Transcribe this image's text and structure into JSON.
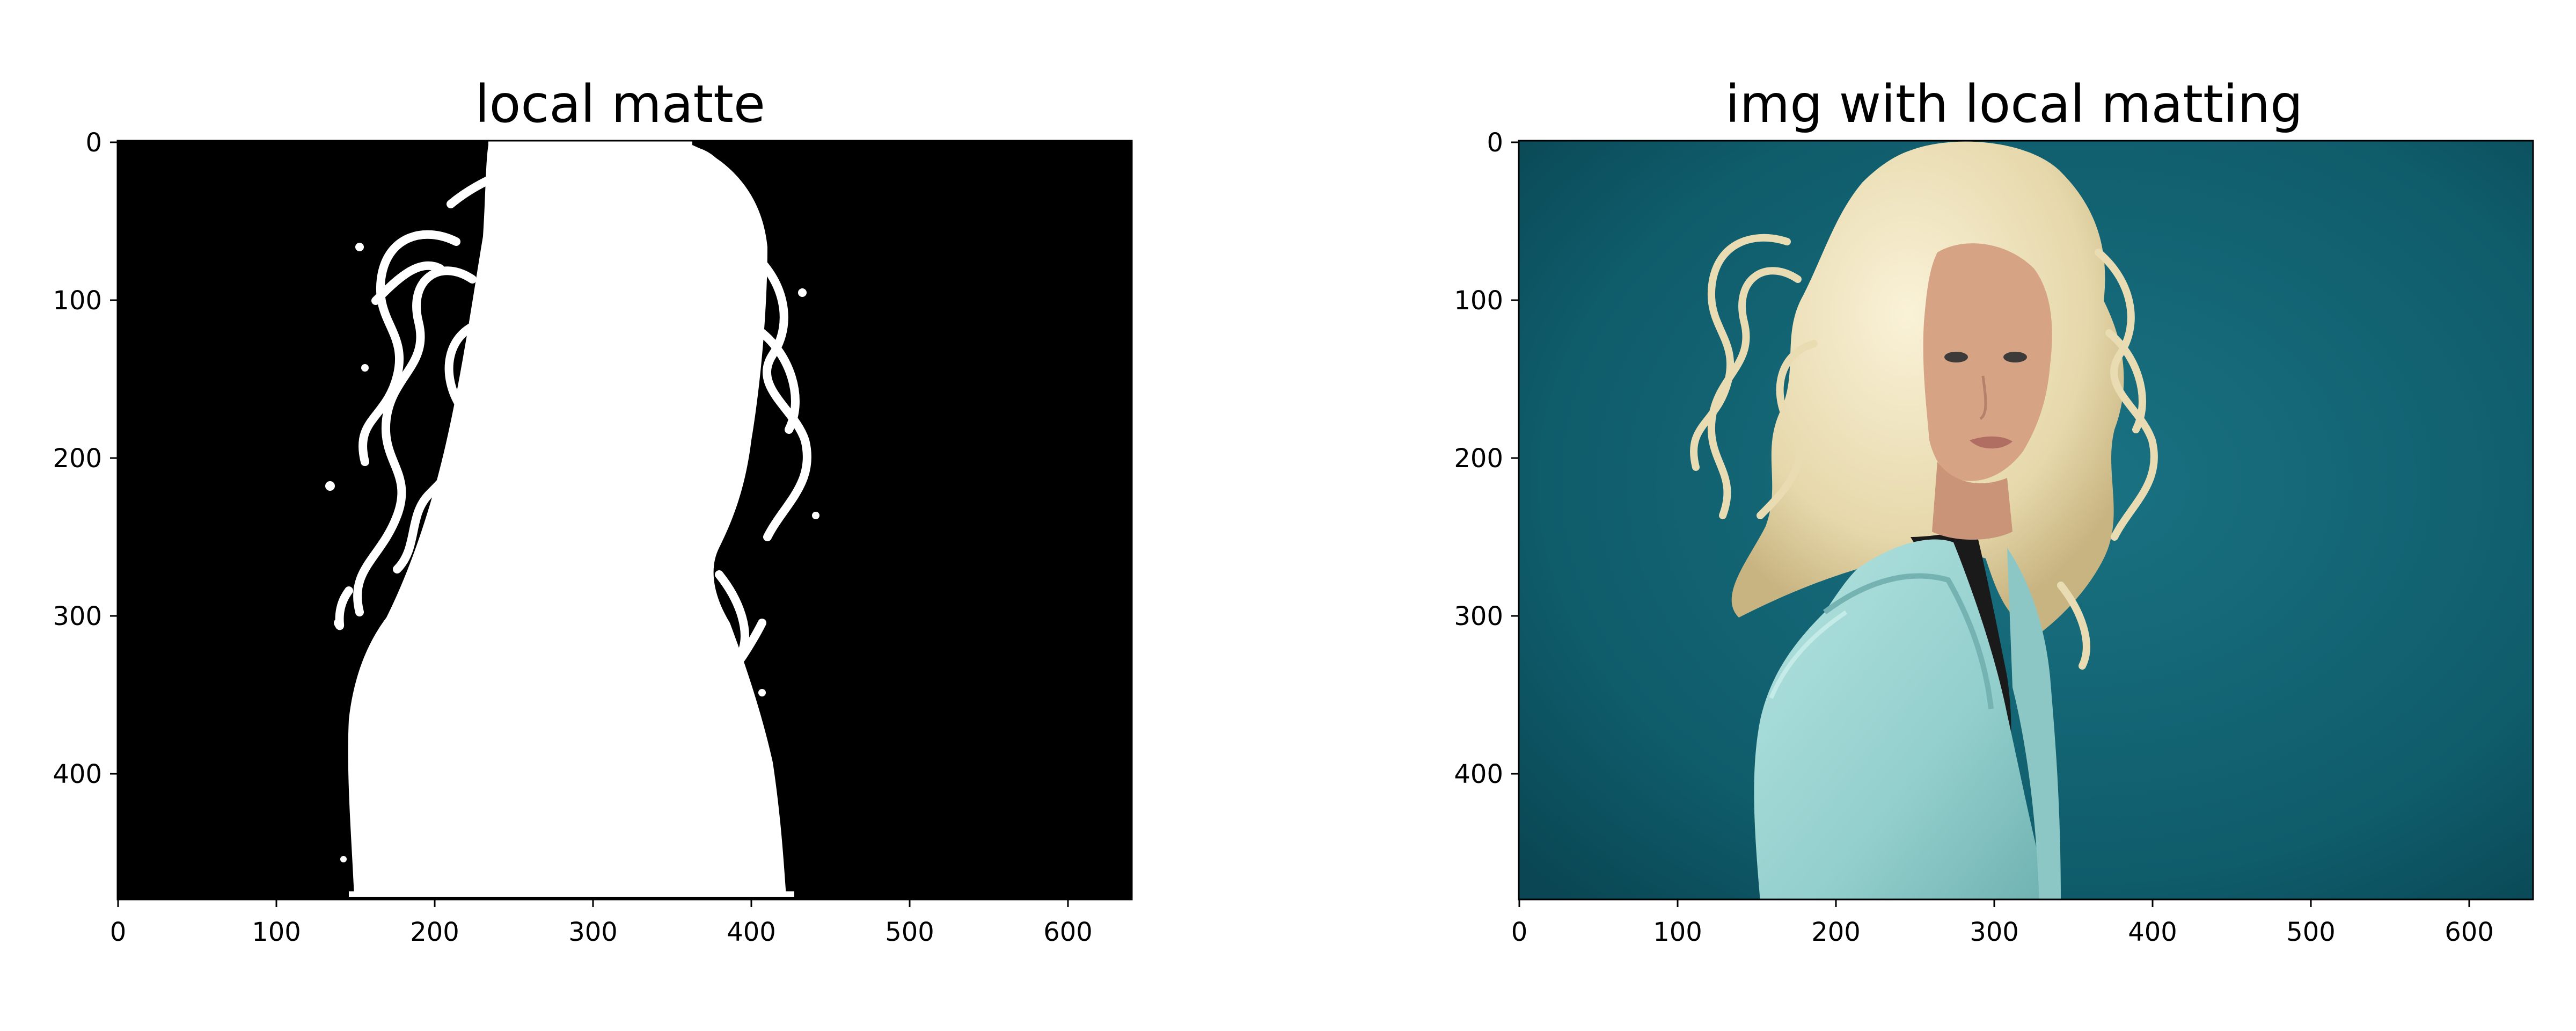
{
  "figures": [
    {
      "title": "local matte",
      "image": "binary foreground matte (white silhouette of woman with curly hair on black)",
      "x_ticks": [
        "0",
        "100",
        "200",
        "300",
        "400",
        "500",
        "600"
      ],
      "y_ticks": [
        "0",
        "100",
        "200",
        "300",
        "400"
      ],
      "x_range": [
        0,
        640
      ],
      "y_range": [
        0,
        480
      ]
    },
    {
      "title": "img with local matting",
      "image": "composited photo of blonde woman in light blue coat on teal background",
      "x_ticks": [
        "0",
        "100",
        "200",
        "300",
        "400",
        "500",
        "600"
      ],
      "y_ticks": [
        "0",
        "100",
        "200",
        "300",
        "400"
      ],
      "x_range": [
        0,
        640
      ],
      "y_range": [
        0,
        480
      ]
    }
  ],
  "colors": {
    "matte_bg": "#000000",
    "matte_fg": "#ffffff",
    "teal_bg": "#0f5e6e",
    "hair": "#efe6c4",
    "coat": "#9fd8d6",
    "skin": "#d9a786"
  }
}
